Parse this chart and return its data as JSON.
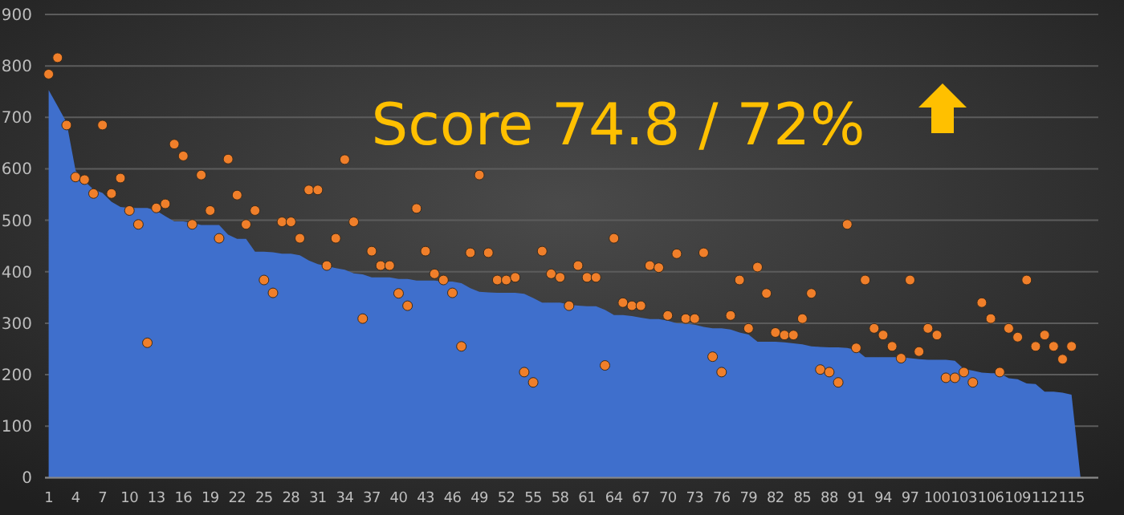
{
  "chart_data": {
    "type": "area",
    "categories": [
      "1",
      null,
      null,
      "4",
      null,
      null,
      "7",
      null,
      null,
      "10",
      null,
      null,
      "13",
      null,
      null,
      "16",
      null,
      null,
      "19",
      null,
      null,
      "22",
      null,
      null,
      "25",
      null,
      null,
      "28",
      null,
      null,
      "31",
      null,
      null,
      "34",
      null,
      null,
      "37",
      null,
      null,
      "40",
      null,
      null,
      "43",
      null,
      null,
      "46",
      null,
      null,
      "49",
      null,
      null,
      "52",
      null,
      null,
      "55",
      null,
      null,
      "58",
      null,
      null,
      "61",
      null,
      null,
      "64",
      null,
      null,
      "67",
      null,
      null,
      "70",
      null,
      null,
      "73",
      null,
      null,
      "76",
      null,
      null,
      "79",
      null,
      null,
      "82",
      null,
      null,
      "85",
      null,
      null,
      "88",
      null,
      null,
      "91",
      null,
      null,
      "94",
      null,
      null,
      "97",
      null,
      null,
      "100",
      null,
      null,
      "103",
      null,
      null,
      "106",
      null,
      null,
      "109",
      null,
      null,
      "112",
      null,
      null,
      "115",
      null
    ],
    "series": [
      {
        "color": "#3f6fcc",
        "values": [
          753,
          722,
          690,
          597,
          576,
          560,
          553,
          536,
          526,
          524,
          524,
          524,
          519,
          508,
          498,
          498,
          495,
          491,
          491,
          491,
          472,
          464,
          464,
          439,
          439,
          438,
          435,
          435,
          432,
          422,
          415,
          411,
          407,
          404,
          397,
          395,
          389,
          389,
          389,
          386,
          386,
          383,
          383,
          383,
          381,
          381,
          378,
          368,
          361,
          360,
          359,
          359,
          359,
          357,
          349,
          340,
          340,
          340,
          336,
          334,
          333,
          333,
          326,
          316,
          316,
          314,
          311,
          308,
          308,
          305,
          300,
          299,
          297,
          293,
          290,
          290,
          288,
          282,
          278,
          264,
          264,
          264,
          263,
          261,
          259,
          255,
          254,
          253,
          253,
          252,
          248,
          234,
          234,
          234,
          234,
          234,
          232,
          230,
          229,
          229,
          229,
          227,
          211,
          208,
          204,
          203,
          203,
          193,
          191,
          183,
          182,
          167,
          167,
          165,
          161,
          0
        ]
      },
      {
        "type": "scatter",
        "color": "#f07f2a",
        "marker": "circle",
        "values": [
          784,
          816,
          685,
          584,
          579,
          552,
          685,
          552,
          582,
          519,
          492,
          262,
          524,
          532,
          648,
          625,
          492,
          588,
          519,
          465,
          619,
          549,
          492,
          519,
          384,
          359,
          497,
          497,
          465,
          559,
          559,
          412,
          465,
          618,
          497,
          309,
          440,
          412,
          412,
          358,
          334,
          523,
          440,
          396,
          384,
          359,
          255,
          437,
          588,
          437,
          384,
          384,
          389,
          205,
          185,
          440,
          396,
          389,
          334,
          412,
          389,
          389,
          218,
          465,
          340,
          334,
          334,
          412,
          408,
          315,
          435,
          309,
          309,
          437,
          235,
          205,
          315,
          384,
          290,
          409,
          358,
          282,
          277,
          277,
          309,
          358,
          210,
          205,
          185,
          492,
          252,
          384,
          290,
          277,
          255,
          232,
          384,
          245,
          290,
          277,
          194,
          194,
          205,
          185,
          340,
          309,
          205,
          290,
          273,
          384,
          255,
          277,
          255,
          230,
          255,
          null
        ]
      }
    ],
    "ylim": [
      0,
      900
    ],
    "yticks": [
      0,
      100,
      200,
      300,
      400,
      500,
      600,
      700,
      800,
      900
    ],
    "grid": "y",
    "annotations": [
      "Score 74.8 / 72%"
    ]
  }
}
